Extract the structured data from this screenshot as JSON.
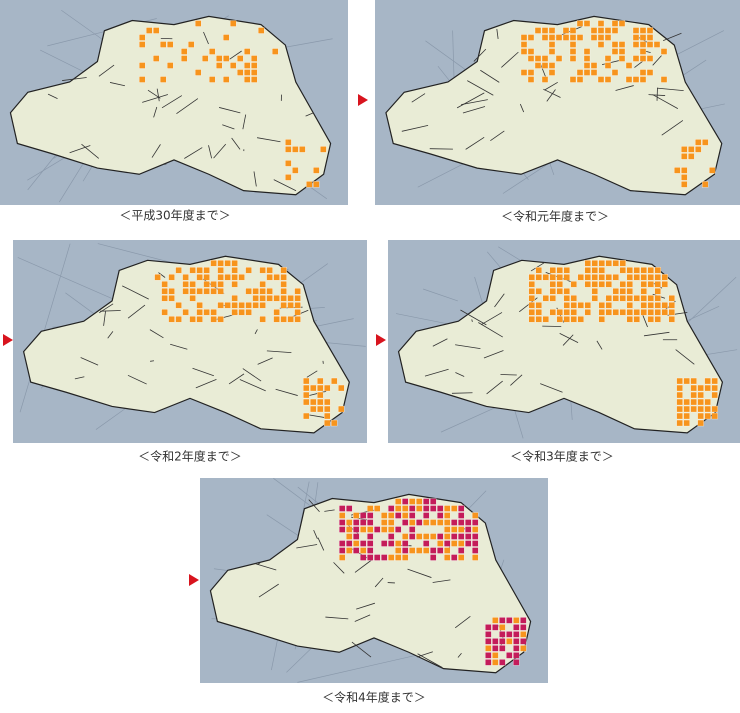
{
  "captions": [
    "＜平成30年度まで＞",
    "＜令和元年度まで＞",
    "＜令和2年度まで＞",
    "＜令和3年度まで＞",
    "＜令和4年度まで＞"
  ]
}
